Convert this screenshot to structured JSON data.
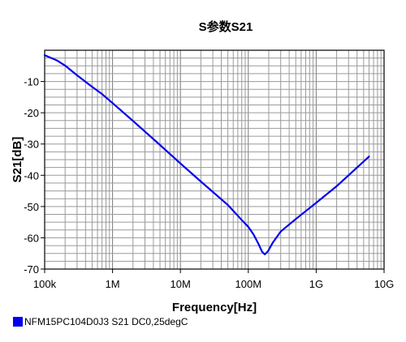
{
  "chart_data": {
    "type": "line",
    "title": "S参数S21",
    "xlabel": "Frequency[Hz]",
    "ylabel": "S21[dB]",
    "x_scale": "log",
    "xlim": [
      100000,
      10000000000
    ],
    "ylim": [
      -70,
      0
    ],
    "x_ticks": [
      {
        "value": 100000,
        "label": "100k"
      },
      {
        "value": 1000000,
        "label": "1M"
      },
      {
        "value": 10000000,
        "label": "10M"
      },
      {
        "value": 100000000,
        "label": "100M"
      },
      {
        "value": 1000000000,
        "label": "1G"
      },
      {
        "value": 10000000000,
        "label": "10G"
      }
    ],
    "y_ticks": [
      {
        "value": -10,
        "label": "-10"
      },
      {
        "value": -20,
        "label": "-20"
      },
      {
        "value": -30,
        "label": "-30"
      },
      {
        "value": -40,
        "label": "-40"
      },
      {
        "value": -50,
        "label": "-50"
      },
      {
        "value": -60,
        "label": "-60"
      },
      {
        "value": -70,
        "label": "-70"
      }
    ],
    "grid": true,
    "legend_position": "bottom-left",
    "series": [
      {
        "name": "NFM15PC104D0J3 S21 DC0,25degC",
        "color": "#0000ee",
        "points": [
          [
            100000,
            -1.6
          ],
          [
            150000,
            -3.2
          ],
          [
            200000,
            -4.9
          ],
          [
            300000,
            -8.0
          ],
          [
            500000,
            -11.7
          ],
          [
            700000,
            -14.0
          ],
          [
            1000000,
            -16.9
          ],
          [
            2000000,
            -22.6
          ],
          [
            5000000,
            -30.3
          ],
          [
            10000000,
            -36.2
          ],
          [
            20000000,
            -42.0
          ],
          [
            50000000,
            -49.5
          ],
          [
            80000000,
            -54.3
          ],
          [
            100000000,
            -56.5
          ],
          [
            120000000,
            -59.0
          ],
          [
            140000000,
            -61.8
          ],
          [
            160000000,
            -64.5
          ],
          [
            175000000,
            -65.3
          ],
          [
            195000000,
            -64.3
          ],
          [
            230000000,
            -61.5
          ],
          [
            300000000,
            -58.0
          ],
          [
            500000000,
            -54.0
          ],
          [
            1000000000,
            -48.8
          ],
          [
            2000000000,
            -43.5
          ],
          [
            4000000000,
            -37.5
          ],
          [
            6000000000,
            -34.0
          ]
        ]
      }
    ]
  }
}
